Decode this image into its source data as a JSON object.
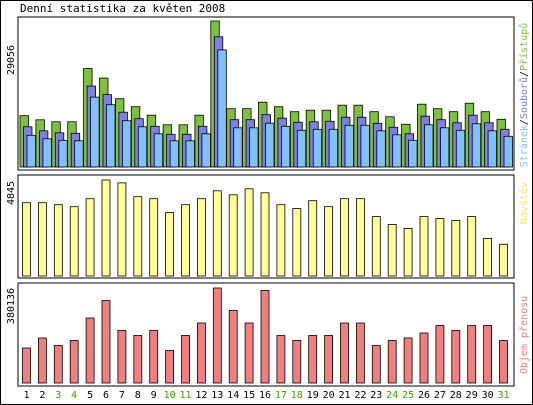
{
  "title": "Denní statistika za květen 2008",
  "days": [
    "1",
    "2",
    "3",
    "4",
    "5",
    "6",
    "7",
    "8",
    "9",
    "10",
    "11",
    "12",
    "13",
    "14",
    "15",
    "16",
    "17",
    "18",
    "19",
    "20",
    "21",
    "22",
    "23",
    "24",
    "25",
    "26",
    "27",
    "28",
    "29",
    "30",
    "31"
  ],
  "weekend_days": [
    "3",
    "4",
    "10",
    "11",
    "17",
    "18",
    "24",
    "25",
    "31"
  ],
  "colors": {
    "pristupu": "#7fc040",
    "souboru": "#8080e0",
    "stranek": "#80c0ff",
    "navstev": "#ffff99",
    "objem": "#f08080",
    "weekend_label": "#40a000",
    "weekday_label": "#000000"
  },
  "panels": {
    "top": {
      "max_label": "29056",
      "side_labels": [
        "Přístupů",
        "Souborů",
        "Stránek"
      ]
    },
    "middle": {
      "max_label": "4845",
      "side_label": "Návštěv"
    },
    "bottom": {
      "max_label": "380136",
      "side_label": "Objem přenosu"
    }
  },
  "chart_data": {
    "type": "bar",
    "title": "Denní statistika za květen 2008",
    "categories": [
      "1",
      "2",
      "3",
      "4",
      "5",
      "6",
      "7",
      "8",
      "9",
      "10",
      "11",
      "12",
      "13",
      "14",
      "15",
      "16",
      "17",
      "18",
      "19",
      "20",
      "21",
      "22",
      "23",
      "24",
      "25",
      "26",
      "27",
      "28",
      "29",
      "30",
      "31"
    ],
    "charts": [
      {
        "name": "top",
        "ylim": [
          0,
          29056
        ],
        "series": [
          {
            "name": "Přístupů",
            "values": [
              10200,
              9400,
              9000,
              9000,
              19600,
              17700,
              13600,
              12000,
              10300,
              8400,
              8400,
              10300,
              29056,
              11600,
              11600,
              12900,
              12000,
              11000,
              11300,
              11300,
              12300,
              12300,
              11000,
              10000,
              8500,
              12500,
              11600,
              11000,
              12700,
              11000,
              9500
            ]
          },
          {
            "name": "Souborů",
            "values": [
              8700,
              7900,
              7500,
              7400,
              16800,
              15100,
              11600,
              10300,
              8800,
              7200,
              7200,
              8800,
              26600,
              10100,
              10100,
              11100,
              10400,
              9600,
              9700,
              9800,
              10600,
              10600,
              9400,
              8600,
              7300,
              10800,
              10100,
              9500,
              11000,
              9500,
              8200
            ]
          },
          {
            "name": "Stránek",
            "values": [
              7700,
              7000,
              6700,
              6600,
              15300,
              13800,
              10600,
              9400,
              8000,
              6600,
              6600,
              8000,
              24700,
              9200,
              9200,
              10100,
              9500,
              8700,
              8900,
              8900,
              9700,
              9700,
              8600,
              7800,
              6700,
              9800,
              9200,
              8700,
              10000,
              8600,
              7500
            ]
          }
        ]
      },
      {
        "name": "middle",
        "ylim": [
          0,
          4845
        ],
        "series": [
          {
            "name": "Návštěv",
            "values": [
              3700,
              3700,
              3600,
              3500,
              3900,
              4845,
              4700,
              4000,
              3900,
              3200,
              3600,
              3900,
              4300,
              4100,
              4400,
              4200,
              3600,
              3400,
              3800,
              3500,
              3900,
              3900,
              3000,
              2600,
              2400,
              3000,
              2900,
              2800,
              3000,
              1900,
              1600
            ]
          }
        ]
      },
      {
        "name": "bottom",
        "ylim": [
          0,
          380136
        ],
        "series": [
          {
            "name": "Objem přenosu",
            "values": [
              140000,
              180000,
              150000,
              170000,
              260000,
              330000,
              210000,
              190000,
              210000,
              130000,
              190000,
              240000,
              380136,
              290000,
              240000,
              370000,
              190000,
              170000,
              190000,
              190000,
              240000,
              240000,
              150000,
              170000,
              180000,
              200000,
              230000,
              210000,
              230000,
              230000,
              170000
            ]
          }
        ]
      }
    ]
  }
}
